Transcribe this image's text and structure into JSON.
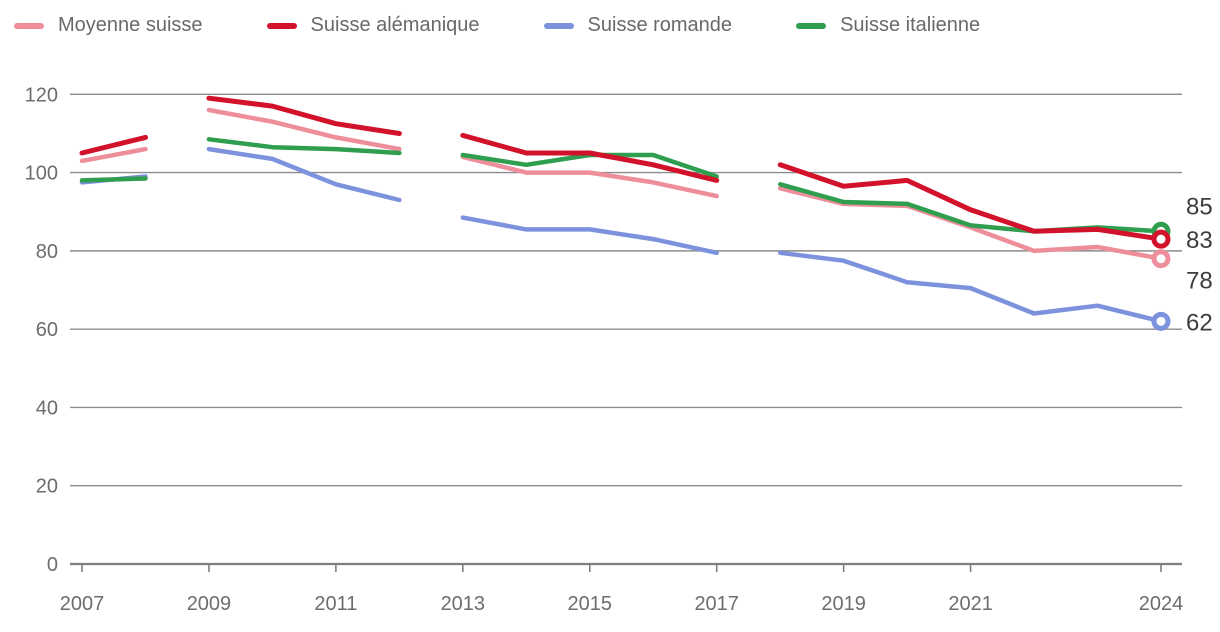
{
  "chart_data": {
    "type": "line",
    "title": "",
    "xlabel": "",
    "ylabel": "",
    "x": [
      2007,
      2008,
      2009,
      2010,
      2011,
      2012,
      2013,
      2014,
      2015,
      2016,
      2017,
      2018,
      2019,
      2020,
      2021,
      2022,
      2023,
      2024
    ],
    "x_tick_labels": [
      "2007",
      "2009",
      "2011",
      "2013",
      "2015",
      "2017",
      "2019",
      "2021",
      "2024"
    ],
    "x_tick_years": [
      2007,
      2009,
      2011,
      2013,
      2015,
      2017,
      2019,
      2021,
      2024
    ],
    "y_ticks": [
      0,
      20,
      40,
      60,
      80,
      100,
      120
    ],
    "y_tick_labels": [
      "0",
      "20",
      "40",
      "60",
      "80",
      "100",
      "120"
    ],
    "ylim": [
      0,
      126
    ],
    "grid": "horizontal",
    "legend_position": "top",
    "line_breaks_after": [
      2008,
      2012,
      2017
    ],
    "series": [
      {
        "name": "Moyenne suisse",
        "color": "#ee8e9b",
        "end_label": "78",
        "values": [
          103,
          106,
          116,
          113,
          109,
          106,
          104,
          100,
          100,
          97.5,
          94,
          96,
          92,
          91.5,
          86,
          80,
          81,
          78
        ]
      },
      {
        "name": "Suisse alémanique",
        "color": "#d2112b",
        "end_label": "83",
        "values": [
          105,
          109,
          119,
          117,
          112.5,
          110,
          109.5,
          105,
          105,
          102,
          98,
          102,
          96.5,
          98,
          90.5,
          85,
          85.5,
          83
        ]
      },
      {
        "name": "Suisse romande",
        "color": "#7d92dd",
        "end_label": "62",
        "values": [
          97.5,
          99,
          106,
          103.5,
          97,
          93,
          88.5,
          85.5,
          85.5,
          83,
          79.5,
          79.5,
          77.5,
          72,
          70.5,
          64,
          66,
          62
        ]
      },
      {
        "name": "Suisse italienne",
        "color": "#309e4f",
        "end_label": "85",
        "values": [
          98,
          98.5,
          108.5,
          106.5,
          106,
          105,
          104.5,
          102,
          104.5,
          104.5,
          99,
          97,
          92.5,
          92,
          86.5,
          85,
          86,
          85
        ]
      }
    ]
  }
}
